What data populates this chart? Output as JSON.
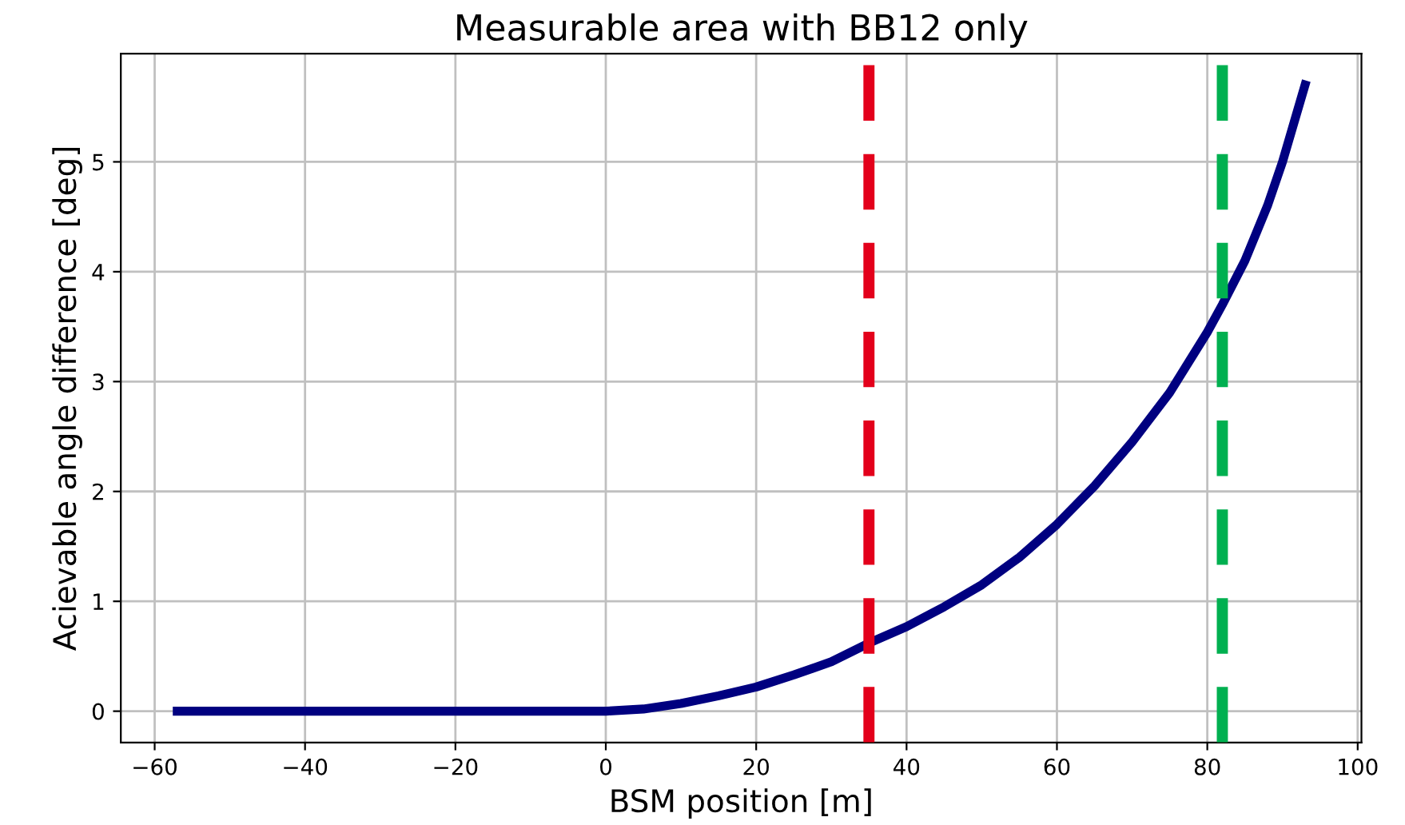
{
  "chart_data": {
    "type": "line",
    "title": "Measurable area with BB12 only",
    "xlabel": "BSM position [m]",
    "ylabel": "Acievable angle difference [deg]",
    "x": [
      -57,
      -40,
      -20,
      0,
      5,
      10,
      15,
      20,
      25,
      30,
      35,
      40,
      45,
      50,
      55,
      60,
      65,
      70,
      75,
      80,
      82,
      85,
      88,
      90,
      93
    ],
    "series": [
      {
        "color": "#000080",
        "values": [
          0,
          0,
          0,
          0,
          0.02,
          0.07,
          0.14,
          0.22,
          0.33,
          0.45,
          0.62,
          0.77,
          0.95,
          1.15,
          1.4,
          1.7,
          2.05,
          2.45,
          2.9,
          3.45,
          3.7,
          4.1,
          4.6,
          5.0,
          5.7
        ]
      }
    ],
    "xlim": [
      -64.5,
      100.5
    ],
    "ylim": [
      -0.285,
      5.985
    ],
    "xticks": [
      -60,
      -40,
      -20,
      0,
      20,
      40,
      60,
      80,
      100
    ],
    "yticks": [
      0,
      1,
      2,
      3,
      4,
      5
    ],
    "grid": true,
    "line_style": "solid",
    "ref_lines": [
      {
        "axis": "x",
        "value": 35,
        "color": "#e3001b",
        "line_style": "dashed"
      },
      {
        "axis": "x",
        "value": 82,
        "color": "#00b050",
        "line_style": "dashed"
      }
    ]
  }
}
